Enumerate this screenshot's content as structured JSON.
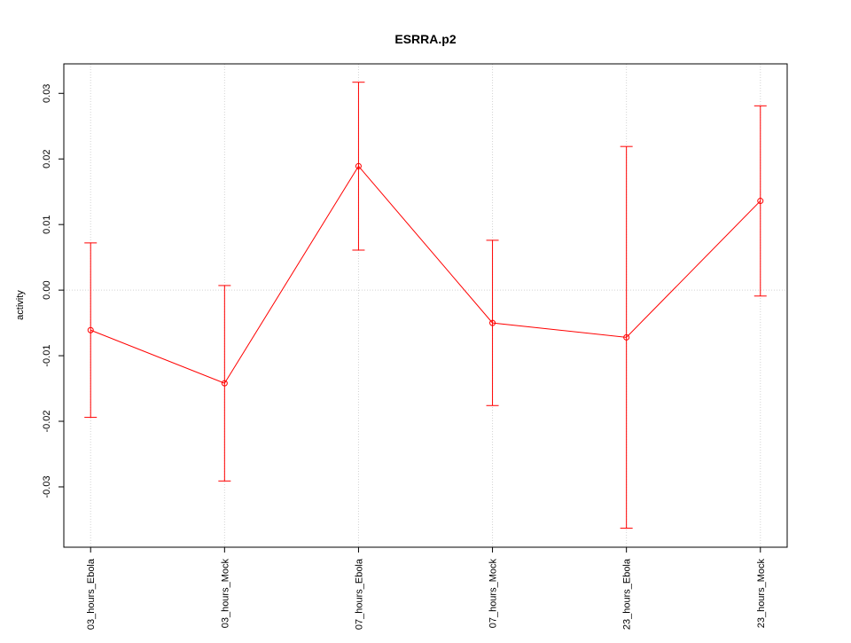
{
  "chart_data": {
    "type": "line",
    "title": "ESRRA.p2",
    "y_label": "activity",
    "categories": [
      "03_hours_Ebola",
      "03_hours_Mock",
      "07_hours_Ebola",
      "07_hours_Mock",
      "23_hours_Ebola",
      "23_hours_Mock"
    ],
    "series": [
      {
        "name": "activity",
        "color": "#ff0000",
        "values": [
          -0.0061,
          -0.0142,
          0.0189,
          -0.005,
          -0.0072,
          0.0136
        ],
        "errors": [
          0.0133,
          0.0149,
          0.0128,
          0.0126,
          0.0291,
          0.0145
        ]
      }
    ],
    "ylim": [
      -0.0392,
      0.0345
    ],
    "yticks": [
      -0.03,
      -0.02,
      -0.01,
      {
        "value": 0,
        "label": "0.00"
      },
      0.01,
      0.02,
      0.03
    ],
    "reference_line": 0,
    "grid": true
  }
}
